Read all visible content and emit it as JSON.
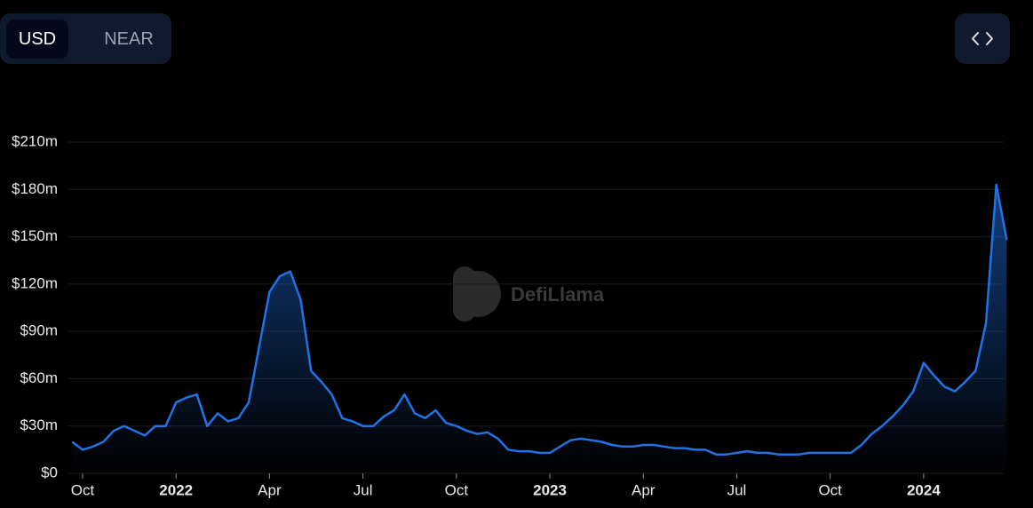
{
  "toggle": {
    "options": [
      "USD",
      "NEAR"
    ]
  },
  "watermark": "DefiLlama",
  "chart_data": {
    "type": "line",
    "color": "#2172e5",
    "grid": true,
    "categories": [
      null,
      "Oct",
      null,
      null,
      null,
      null,
      null,
      null,
      null,
      null,
      "2022",
      null,
      null,
      null,
      null,
      null,
      null,
      null,
      null,
      "Apr",
      null,
      null,
      null,
      null,
      null,
      null,
      null,
      null,
      "Jul",
      null,
      null,
      null,
      null,
      null,
      null,
      null,
      null,
      "Oct",
      null,
      null,
      null,
      null,
      null,
      null,
      null,
      null,
      "2023",
      null,
      null,
      null,
      null,
      null,
      null,
      null,
      null,
      "Apr",
      null,
      null,
      null,
      null,
      null,
      null,
      null,
      null,
      "Jul",
      null,
      null,
      null,
      null,
      null,
      null,
      null,
      null,
      "Oct",
      null,
      null,
      null,
      null,
      null,
      null,
      null,
      null,
      "2024",
      null,
      null,
      null,
      null,
      null,
      null,
      null,
      null
    ],
    "series": [
      {
        "name": "USD",
        "color": "#2172e5",
        "values": [
          20,
          15,
          17,
          20,
          27,
          30,
          27,
          24,
          30,
          30,
          45,
          48,
          50,
          30,
          38,
          33,
          35,
          45,
          80,
          115,
          125,
          128,
          110,
          65,
          58,
          50,
          35,
          33,
          30,
          30,
          36,
          40,
          50,
          38,
          35,
          40,
          32,
          30,
          27,
          25,
          26,
          22,
          15,
          14,
          14,
          13,
          13,
          17,
          21,
          22,
          21,
          20,
          18,
          17,
          17,
          18,
          18,
          17,
          16,
          16,
          15,
          15,
          12,
          12,
          13,
          14,
          13,
          13,
          12,
          12,
          12,
          13,
          13,
          13,
          13,
          13,
          18,
          25,
          30,
          36,
          43,
          52,
          70,
          62,
          55,
          52,
          58,
          65,
          95,
          183,
          148
        ]
      }
    ],
    "ylim": [
      0,
      210
    ],
    "yticks": [
      {
        "value": 0,
        "label": "$0"
      },
      {
        "value": 30,
        "label": "$30m"
      },
      {
        "value": 60,
        "label": "$60m"
      },
      {
        "value": 90,
        "label": "$90m"
      },
      {
        "value": 120,
        "label": "$120m"
      },
      {
        "value": 150,
        "label": "$150m"
      },
      {
        "value": 180,
        "label": "$180m"
      },
      {
        "value": 210,
        "label": "$210m"
      }
    ]
  }
}
